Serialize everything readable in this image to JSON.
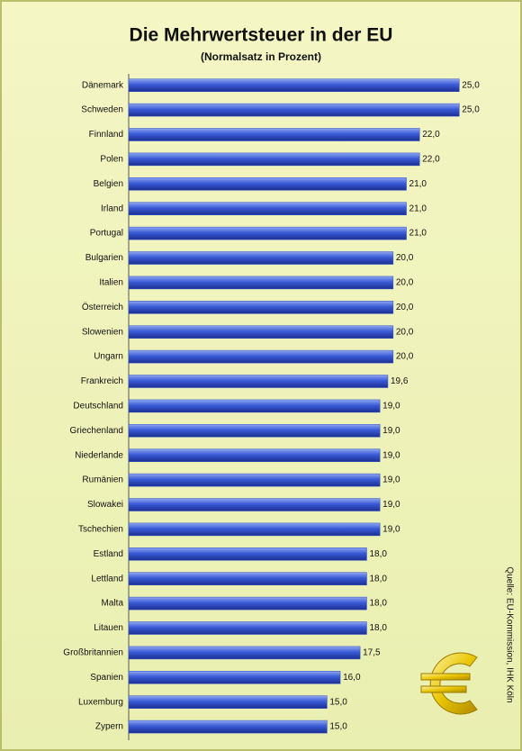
{
  "chart_data": {
    "type": "barh",
    "title": "Die Mehrwertsteuer in der EU",
    "subtitle": "(Normalsatz in Prozent)",
    "annotation": "Quelle: EU-Kommission, IHK Köln",
    "categories": [
      "Dänemark",
      "Schweden",
      "Finnland",
      "Polen",
      "Belgien",
      "Irland",
      "Portugal",
      "Bulgarien",
      "Italien",
      "Österreich",
      "Slowenien",
      "Ungarn",
      "Frankreich",
      "Deutschland",
      "Griechenland",
      "Niederlande",
      "Rumänien",
      "Slowakei",
      "Tschechien",
      "Estland",
      "Lettland",
      "Malta",
      "Litauen",
      "Großbritannien",
      "Spanien",
      "Luxemburg",
      "Zypern"
    ],
    "values": [
      25,
      25,
      22,
      22,
      21,
      21,
      21,
      20,
      20,
      20,
      20,
      20,
      19.6,
      19,
      19,
      19,
      19,
      19,
      19,
      18,
      18,
      18,
      18,
      17.5,
      16,
      15,
      15
    ],
    "value_labels": [
      "25,0",
      "25,0",
      "22,0",
      "22,0",
      "21,0",
      "21,0",
      "21,0",
      "20,0",
      "20,0",
      "20,0",
      "20,0",
      "20,0",
      "19,6",
      "19,0",
      "19,0",
      "19,0",
      "19,0",
      "19,0",
      "19,0",
      "18,0",
      "18,0",
      "18,0",
      "18,0",
      "17,5",
      "16,0",
      "15,0",
      "15,0"
    ],
    "color": "#3050c8",
    "xlim": [
      0,
      26
    ]
  }
}
